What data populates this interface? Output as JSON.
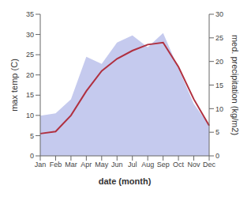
{
  "chart_data": {
    "type": "line",
    "xlabel": "date (month)",
    "ylabel": "max temp (C)",
    "y2label": "med. precipitation (kg/m2)",
    "categories": [
      "Jan",
      "Feb",
      "Mar",
      "Apr",
      "May",
      "Jun",
      "Jul",
      "Aug",
      "Sep",
      "Oct",
      "Nov",
      "Dec"
    ],
    "series": [
      {
        "type": "area",
        "axis": "y2",
        "color": "#c5caee",
        "values": [
          8.5,
          9.0,
          12.0,
          21.0,
          19.5,
          24.0,
          25.5,
          23.0,
          26.0,
          18.5,
          11.0,
          6.5
        ]
      },
      {
        "type": "line",
        "color": "#b03040",
        "values": [
          5.5,
          6.0,
          10.0,
          16.0,
          21.0,
          24.0,
          26.0,
          27.5,
          28.0,
          22.0,
          14.0,
          7.5
        ]
      }
    ],
    "ylim": [
      0,
      35
    ],
    "yticks": [
      0,
      5,
      10,
      15,
      20,
      25,
      30,
      35
    ],
    "y2lim": [
      0,
      30
    ],
    "y2ticks": [
      0,
      5,
      10,
      15,
      20,
      25,
      30
    ],
    "grid": false
  }
}
